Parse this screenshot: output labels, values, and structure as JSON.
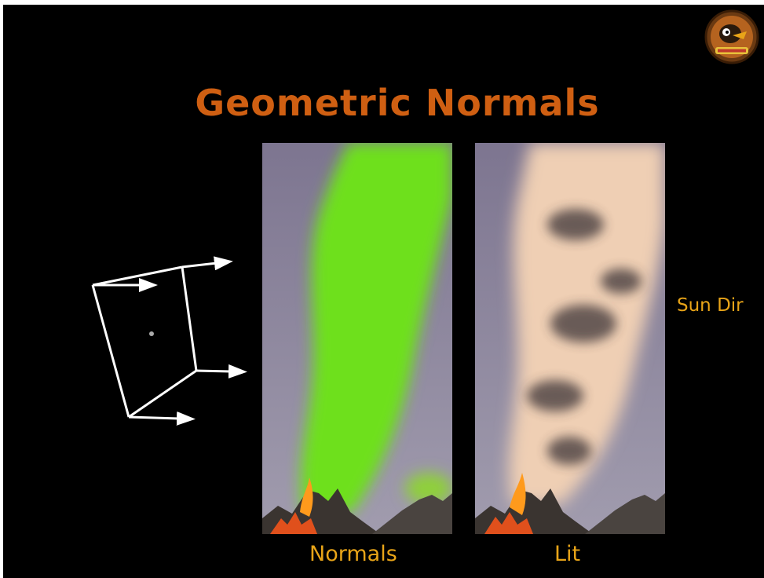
{
  "slide": {
    "title": "Geometric Normals",
    "sun_label": "Sun Dir",
    "panels": [
      {
        "caption": "Normals"
      },
      {
        "caption": "Lit"
      }
    ]
  },
  "colors": {
    "title": "#cf5f12",
    "caption": "#e8a418",
    "background": "#000000",
    "normals_green": "#6ee01a",
    "smoke_light": "#efcfb4",
    "sky": "#8f8aa4"
  },
  "icons": [
    "mascot-logo",
    "normal-vectors-quad-diagram"
  ]
}
